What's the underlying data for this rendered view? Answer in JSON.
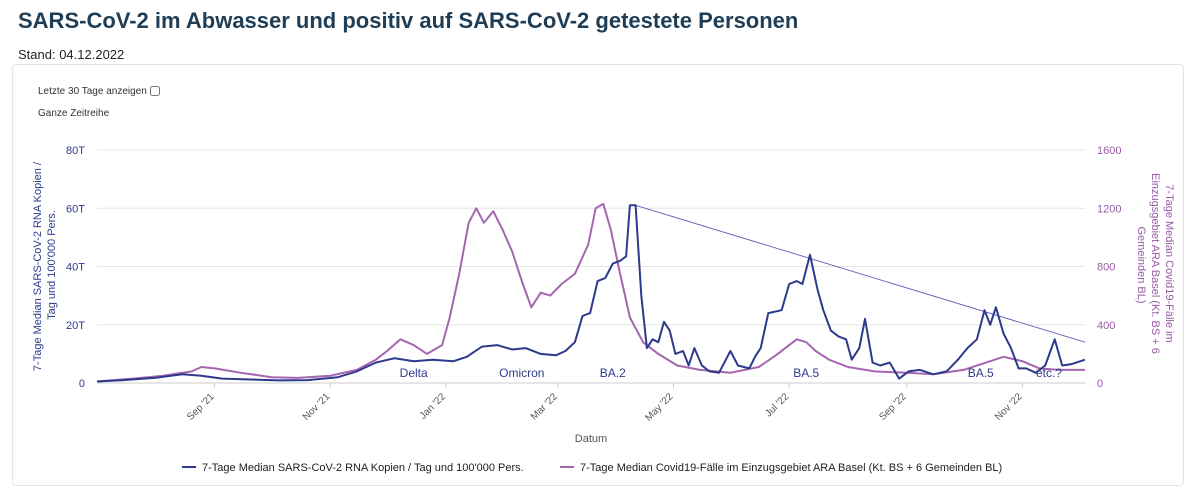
{
  "header": {
    "title": "SARS-CoV-2 im Abwasser und positiv auf SARS-CoV-2 getestete Personen",
    "stand": "Stand: 04.12.2022"
  },
  "controls": {
    "last30_label": "Letzte 30 Tage anzeigen",
    "full_range_label": "Ganze Zeitreihe"
  },
  "chart_data": {
    "type": "line",
    "xlabel": "Datum",
    "ylabel_left": "7-Tage Median SARS-CoV-2 RNA Kopien / Tag und 100'000 Pers.",
    "ylabel_right": "7-Tage Median Covid19-Fälle im Einzugsgebiet ARA Basel (Kt. BS + 6 Gemeinden BL)",
    "x_range": [
      "2021-07-01",
      "2022-12-04"
    ],
    "y_left_range": [
      0,
      80000
    ],
    "y_right_range": [
      0,
      1600
    ],
    "y_left_ticks": [
      "0",
      "20T",
      "40T",
      "60T",
      "80T"
    ],
    "y_right_ticks": [
      "0",
      "400",
      "800",
      "1200",
      "1600"
    ],
    "x_ticks": [
      {
        "date": "2021-09-01",
        "label": "Sep '21"
      },
      {
        "date": "2021-11-01",
        "label": "Nov '21"
      },
      {
        "date": "2022-01-01",
        "label": "Jan '22"
      },
      {
        "date": "2022-03-01",
        "label": "Mar '22"
      },
      {
        "date": "2022-05-01",
        "label": "May '22"
      },
      {
        "date": "2022-07-01",
        "label": "Jul '22"
      },
      {
        "date": "2022-09-01",
        "label": "Sep '22"
      },
      {
        "date": "2022-11-01",
        "label": "Nov '22"
      }
    ],
    "grid": true,
    "legend": "bottom",
    "series": [
      {
        "name": "7-Tage Median SARS-CoV-2 RNA Kopien / Tag und 100'000 Pers.",
        "axis": "left",
        "color": "#2d3a8c",
        "points": [
          [
            "2021-07-01",
            500
          ],
          [
            "2021-07-15",
            1000
          ],
          [
            "2021-08-01",
            1800
          ],
          [
            "2021-08-15",
            3000
          ],
          [
            "2021-08-25",
            2500
          ],
          [
            "2021-09-05",
            1500
          ],
          [
            "2021-09-20",
            1200
          ],
          [
            "2021-10-05",
            900
          ],
          [
            "2021-10-20",
            1000
          ],
          [
            "2021-11-05",
            2000
          ],
          [
            "2021-11-15",
            4000
          ],
          [
            "2021-11-25",
            7000
          ],
          [
            "2021-12-05",
            8500
          ],
          [
            "2021-12-15",
            7500
          ],
          [
            "2021-12-25",
            8000
          ],
          [
            "2022-01-05",
            7500
          ],
          [
            "2022-01-12",
            9000
          ],
          [
            "2022-01-20",
            12500
          ],
          [
            "2022-01-28",
            13000
          ],
          [
            "2022-02-05",
            11500
          ],
          [
            "2022-02-12",
            12000
          ],
          [
            "2022-02-20",
            10000
          ],
          [
            "2022-02-28",
            9500
          ],
          [
            "2022-03-05",
            11000
          ],
          [
            "2022-03-10",
            14000
          ],
          [
            "2022-03-14",
            23000
          ],
          [
            "2022-03-18",
            24000
          ],
          [
            "2022-03-22",
            35000
          ],
          [
            "2022-03-26",
            36000
          ],
          [
            "2022-03-30",
            41000
          ],
          [
            "2022-04-03",
            42000
          ],
          [
            "2022-04-06",
            43500
          ],
          [
            "2022-04-08",
            61000
          ],
          [
            "2022-04-11",
            61000
          ],
          [
            "2022-04-14",
            30000
          ],
          [
            "2022-04-17",
            12000
          ],
          [
            "2022-04-20",
            15000
          ],
          [
            "2022-04-23",
            14000
          ],
          [
            "2022-04-26",
            21000
          ],
          [
            "2022-04-29",
            18000
          ],
          [
            "2022-05-02",
            10000
          ],
          [
            "2022-05-06",
            11000
          ],
          [
            "2022-05-09",
            6000
          ],
          [
            "2022-05-12",
            12000
          ],
          [
            "2022-05-16",
            6000
          ],
          [
            "2022-05-20",
            4000
          ],
          [
            "2022-05-25",
            3500
          ],
          [
            "2022-05-31",
            11000
          ],
          [
            "2022-06-04",
            6000
          ],
          [
            "2022-06-10",
            5000
          ],
          [
            "2022-06-13",
            9000
          ],
          [
            "2022-06-16",
            12000
          ],
          [
            "2022-06-20",
            24000
          ],
          [
            "2022-06-27",
            25000
          ],
          [
            "2022-07-01",
            34000
          ],
          [
            "2022-07-05",
            35000
          ],
          [
            "2022-07-08",
            34000
          ],
          [
            "2022-07-12",
            44000
          ],
          [
            "2022-07-16",
            32000
          ],
          [
            "2022-07-19",
            25000
          ],
          [
            "2022-07-23",
            18000
          ],
          [
            "2022-07-27",
            16000
          ],
          [
            "2022-07-31",
            15000
          ],
          [
            "2022-08-03",
            8000
          ],
          [
            "2022-08-07",
            12000
          ],
          [
            "2022-08-10",
            22000
          ],
          [
            "2022-08-14",
            7000
          ],
          [
            "2022-08-18",
            6000
          ],
          [
            "2022-08-23",
            7000
          ],
          [
            "2022-08-28",
            1500
          ],
          [
            "2022-09-02",
            4000
          ],
          [
            "2022-09-08",
            4500
          ],
          [
            "2022-09-15",
            3000
          ],
          [
            "2022-09-22",
            4000
          ],
          [
            "2022-09-28",
            8000
          ],
          [
            "2022-10-03",
            12000
          ],
          [
            "2022-10-08",
            15000
          ],
          [
            "2022-10-12",
            25000
          ],
          [
            "2022-10-15",
            20000
          ],
          [
            "2022-10-18",
            26000
          ],
          [
            "2022-10-22",
            17000
          ],
          [
            "2022-10-26",
            12000
          ],
          [
            "2022-10-30",
            5000
          ],
          [
            "2022-11-03",
            5000
          ],
          [
            "2022-11-08",
            3500
          ],
          [
            "2022-11-13",
            6000
          ],
          [
            "2022-11-18",
            15000
          ],
          [
            "2022-11-22",
            6000
          ],
          [
            "2022-11-27",
            6500
          ],
          [
            "2022-12-04",
            8000
          ]
        ]
      },
      {
        "name": "7-Tage Median Covid19-Fälle im Einzugsgebiet ARA Basel (Kt. BS + 6 Gemeinden BL)",
        "axis": "right",
        "color": "#a565b0",
        "points": [
          [
            "2021-07-01",
            10
          ],
          [
            "2021-07-20",
            30
          ],
          [
            "2021-08-05",
            50
          ],
          [
            "2021-08-20",
            80
          ],
          [
            "2021-08-25",
            110
          ],
          [
            "2021-09-01",
            100
          ],
          [
            "2021-09-15",
            70
          ],
          [
            "2021-10-01",
            40
          ],
          [
            "2021-10-15",
            35
          ],
          [
            "2021-11-01",
            50
          ],
          [
            "2021-11-15",
            90
          ],
          [
            "2021-11-25",
            160
          ],
          [
            "2021-12-01",
            220
          ],
          [
            "2021-12-08",
            300
          ],
          [
            "2021-12-15",
            260
          ],
          [
            "2021-12-22",
            200
          ],
          [
            "2021-12-30",
            260
          ],
          [
            "2022-01-03",
            450
          ],
          [
            "2022-01-08",
            750
          ],
          [
            "2022-01-13",
            1100
          ],
          [
            "2022-01-17",
            1200
          ],
          [
            "2022-01-21",
            1100
          ],
          [
            "2022-01-26",
            1180
          ],
          [
            "2022-01-31",
            1050
          ],
          [
            "2022-02-05",
            900
          ],
          [
            "2022-02-10",
            700
          ],
          [
            "2022-02-15",
            520
          ],
          [
            "2022-02-20",
            620
          ],
          [
            "2022-02-25",
            600
          ],
          [
            "2022-03-03",
            680
          ],
          [
            "2022-03-10",
            750
          ],
          [
            "2022-03-17",
            950
          ],
          [
            "2022-03-21",
            1200
          ],
          [
            "2022-03-25",
            1230
          ],
          [
            "2022-03-29",
            1050
          ],
          [
            "2022-04-02",
            800
          ],
          [
            "2022-04-08",
            450
          ],
          [
            "2022-04-15",
            280
          ],
          [
            "2022-04-23",
            200
          ],
          [
            "2022-05-03",
            120
          ],
          [
            "2022-05-15",
            90
          ],
          [
            "2022-05-31",
            70
          ],
          [
            "2022-06-15",
            110
          ],
          [
            "2022-06-25",
            200
          ],
          [
            "2022-07-01",
            260
          ],
          [
            "2022-07-05",
            300
          ],
          [
            "2022-07-10",
            280
          ],
          [
            "2022-07-15",
            220
          ],
          [
            "2022-07-22",
            160
          ],
          [
            "2022-08-01",
            110
          ],
          [
            "2022-08-15",
            80
          ],
          [
            "2022-09-01",
            70
          ],
          [
            "2022-09-15",
            60
          ],
          [
            "2022-10-01",
            90
          ],
          [
            "2022-10-15",
            150
          ],
          [
            "2022-10-22",
            180
          ],
          [
            "2022-11-01",
            150
          ],
          [
            "2022-11-10",
            100
          ],
          [
            "2022-11-20",
            90
          ],
          [
            "2022-12-04",
            90
          ]
        ]
      },
      {
        "name": "",
        "kind": "trend-line",
        "axis": "left",
        "color": "#5a5fb8",
        "points": [
          [
            "2022-04-11",
            61000
          ],
          [
            "2022-12-04",
            14000
          ]
        ]
      }
    ],
    "annotations": [
      {
        "text": "Delta",
        "date": "2021-12-15",
        "y_left": 2000
      },
      {
        "text": "Omicron",
        "date": "2022-02-10",
        "y_left": 2000
      },
      {
        "text": "BA.2",
        "date": "2022-03-30",
        "y_left": 2000
      },
      {
        "text": "BA.5",
        "date": "2022-07-10",
        "y_left": 2000
      },
      {
        "text": "BA.5",
        "date": "2022-10-10",
        "y_left": 2000
      },
      {
        "text": "etc.?",
        "date": "2022-11-15",
        "y_left": 2000
      }
    ]
  }
}
